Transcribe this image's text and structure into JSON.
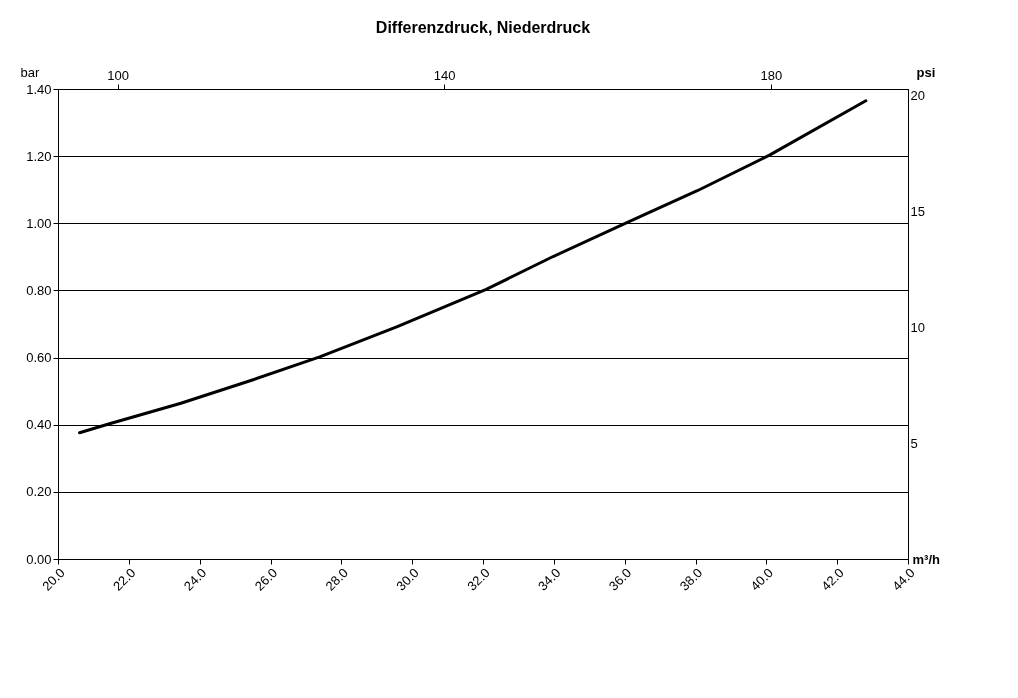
{
  "chart_data": {
    "type": "line",
    "title": "Differenzdruck, Niederdruck",
    "xlabel": "m³/h",
    "ylabel": "bar",
    "y2label": "psi",
    "x": [
      20.61,
      21.43,
      23.47,
      25.51,
      27.39,
      29.58,
      32.09,
      33.98,
      36.17,
      38.05,
      40.09,
      42.81
    ],
    "series": [
      {
        "color": "#000000",
        "values": [
          0.376,
          0.402,
          0.464,
          0.534,
          0.602,
          0.692,
          0.803,
          0.901,
          1.007,
          1.097,
          1.203,
          1.365
        ]
      }
    ],
    "xlim": [
      20,
      44
    ],
    "xticks": [
      {
        "value": 20,
        "label": "20.0"
      },
      {
        "value": 22,
        "label": "22.0"
      },
      {
        "value": 24,
        "label": "24.0"
      },
      {
        "value": 26,
        "label": "26.0"
      },
      {
        "value": 28,
        "label": "28.0"
      },
      {
        "value": 30,
        "label": "30.0"
      },
      {
        "value": 32,
        "label": "32.0"
      },
      {
        "value": 34,
        "label": "34.0"
      },
      {
        "value": 36,
        "label": "36.0"
      },
      {
        "value": 38,
        "label": "38.0"
      },
      {
        "value": 40,
        "label": "40.0"
      },
      {
        "value": 42,
        "label": "42.0"
      },
      {
        "value": 44,
        "label": "44.0"
      }
    ],
    "ylim": [
      0,
      1.4
    ],
    "yticks": [
      {
        "value": 0,
        "label": "0.00"
      },
      {
        "value": 0.2,
        "label": "0.20"
      },
      {
        "value": 0.4,
        "label": "0.40"
      },
      {
        "value": 0.6,
        "label": "0.60"
      },
      {
        "value": 0.8,
        "label": "0.80"
      },
      {
        "value": 1.0,
        "label": "1.00"
      },
      {
        "value": 1.2,
        "label": "1.20"
      },
      {
        "value": 1.4,
        "label": "1.40"
      }
    ],
    "x2lim": [
      92.7,
      196.8
    ],
    "x2ticks": [
      100,
      140,
      180
    ],
    "y2lim": [
      0,
      20.3
    ],
    "y2ticks": [
      5,
      10,
      15,
      20
    ],
    "grid": "y",
    "marker": "none",
    "line_style": "solid"
  }
}
